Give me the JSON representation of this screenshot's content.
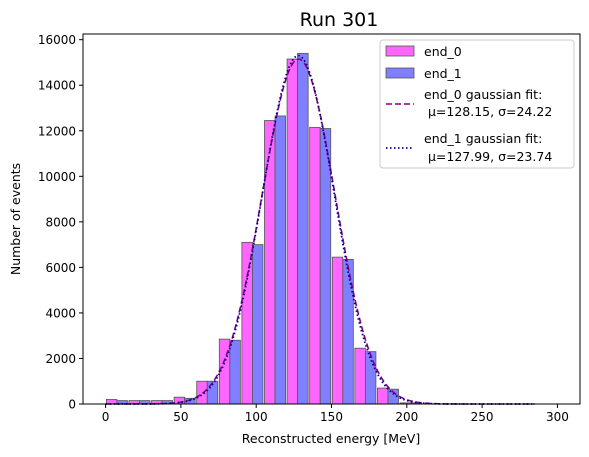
{
  "chart_data": {
    "type": "bar",
    "title": "Run 301",
    "xlabel": "Reconstructed energy [MeV]",
    "ylabel": "Number of events",
    "xlim": [
      -15,
      315
    ],
    "ylim": [
      0,
      16250
    ],
    "xticks": [
      0,
      50,
      100,
      150,
      200,
      250,
      300
    ],
    "yticks": [
      0,
      2000,
      4000,
      6000,
      8000,
      10000,
      12000,
      14000,
      16000
    ],
    "bin_width": 15,
    "bar_width": 7,
    "legend_position": "top-right",
    "grid": false,
    "series": [
      {
        "name": "end_0",
        "color": "#ff66ff",
        "x": [
          7.5,
          22.5,
          37.5,
          52.5,
          67.5,
          82.5,
          97.5,
          112.5,
          127.5,
          142.5,
          157.5,
          172.5,
          187.5,
          202.5
        ],
        "values": [
          200,
          150,
          150,
          300,
          1000,
          2850,
          7100,
          12450,
          15150,
          12150,
          6450,
          2450,
          700,
          50
        ]
      },
      {
        "name": "end_1",
        "color": "#7f7fff",
        "x": [
          7.5,
          22.5,
          37.5,
          52.5,
          67.5,
          82.5,
          97.5,
          112.5,
          127.5,
          142.5,
          157.5,
          172.5,
          187.5,
          202.5
        ],
        "values": [
          150,
          150,
          150,
          250,
          1000,
          2800,
          7000,
          12650,
          15400,
          12100,
          6350,
          2300,
          650,
          50
        ]
      }
    ],
    "fits": [
      {
        "name_line1": "end_0 gaussian fit:",
        "name_line2": " μ=128.15, σ=24.22",
        "mu": 128.15,
        "sigma": 24.22,
        "amplitude": 15150,
        "x_range": [
          0,
          285
        ],
        "color": "#800080",
        "style": "dashed"
      },
      {
        "name_line1": "end_1 gaussian fit:",
        "name_line2": " μ=127.99, σ=23.74",
        "mu": 127.99,
        "sigma": 23.74,
        "amplitude": 15300,
        "x_range": [
          0,
          285
        ],
        "color": "#00008b",
        "style": "dotted"
      }
    ]
  }
}
